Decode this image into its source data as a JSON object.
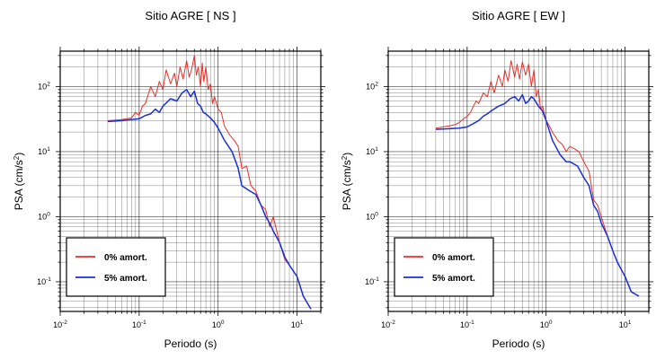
{
  "chart_data": [
    {
      "type": "line",
      "title": "Sitio AGRE [ NS ]",
      "xlabel": "Periodo (s)",
      "ylabel": "PSA (cm/s²)",
      "ylabel_parts": {
        "main": "PSA (cm/s",
        "sup": "2",
        "close": ")"
      },
      "xscale": "log",
      "yscale": "log",
      "xlim": [
        0.01,
        20
      ],
      "ylim": [
        0.035,
        350
      ],
      "xticks": [
        {
          "value": 0.01,
          "base": "10",
          "exp": "-2"
        },
        {
          "value": 0.1,
          "base": "10",
          "exp": "-1"
        },
        {
          "value": 1,
          "base": "10",
          "exp": "0"
        },
        {
          "value": 10,
          "base": "10",
          "exp": "1"
        }
      ],
      "yticks": [
        {
          "value": 0.1,
          "base": "10",
          "exp": "-1"
        },
        {
          "value": 1,
          "base": "10",
          "exp": "0"
        },
        {
          "value": 10,
          "base": "10",
          "exp": "1"
        },
        {
          "value": 100,
          "base": "10",
          "exp": "2"
        }
      ],
      "grid": true,
      "legend_position": "bottom-left",
      "series": [
        {
          "name": "0% amort.",
          "color": "#e8302a",
          "x": [
            0.04,
            0.06,
            0.08,
            0.09,
            0.1,
            0.11,
            0.12,
            0.13,
            0.14,
            0.16,
            0.18,
            0.2,
            0.22,
            0.25,
            0.28,
            0.3,
            0.33,
            0.36,
            0.4,
            0.43,
            0.46,
            0.5,
            0.53,
            0.56,
            0.6,
            0.63,
            0.66,
            0.7,
            0.75,
            0.8,
            0.85,
            0.9,
            1.0,
            1.1,
            1.2,
            1.4,
            1.6,
            1.8,
            2.0,
            2.3,
            2.6,
            3.0,
            3.5,
            4.0,
            4.5,
            5.0,
            6.0,
            7.0,
            8.0,
            10.0,
            12.0,
            15.0
          ],
          "y": [
            30,
            31,
            33,
            40,
            36,
            50,
            55,
            75,
            100,
            70,
            120,
            90,
            180,
            110,
            160,
            100,
            200,
            130,
            250,
            140,
            180,
            300,
            150,
            200,
            100,
            230,
            120,
            200,
            90,
            110,
            55,
            70,
            45,
            40,
            25,
            18,
            15,
            12,
            5.5,
            6,
            3,
            2.5,
            1.5,
            1.3,
            0.7,
            1.0,
            0.4,
            0.22,
            0.18,
            0.12,
            0.06,
            0.038
          ]
        },
        {
          "name": "5% amort.",
          "color": "#1a2fd6",
          "x": [
            0.04,
            0.06,
            0.08,
            0.1,
            0.12,
            0.14,
            0.16,
            0.18,
            0.2,
            0.25,
            0.3,
            0.35,
            0.4,
            0.45,
            0.5,
            0.55,
            0.6,
            0.65,
            0.7,
            0.8,
            0.9,
            1.0,
            1.2,
            1.5,
            1.8,
            2.0,
            2.5,
            3.0,
            3.5,
            4.0,
            4.5,
            5.0,
            6.0,
            7.0,
            8.0,
            10.0,
            12.0,
            15.0
          ],
          "y": [
            29,
            30,
            31,
            32,
            36,
            38,
            45,
            40,
            50,
            65,
            60,
            80,
            90,
            70,
            85,
            55,
            50,
            40,
            38,
            33,
            28,
            23,
            15,
            10,
            5.5,
            3,
            2.5,
            2.2,
            1.5,
            1.0,
            0.8,
            0.6,
            0.4,
            0.24,
            0.18,
            0.12,
            0.06,
            0.038
          ]
        }
      ]
    },
    {
      "type": "line",
      "title": "Sitio AGRE [ EW ]",
      "xlabel": "Periodo (s)",
      "ylabel": "PSA (cm/s²)",
      "ylabel_parts": {
        "main": "PSA (cm/s",
        "sup": "2",
        "close": ")"
      },
      "xscale": "log",
      "yscale": "log",
      "xlim": [
        0.01,
        20
      ],
      "ylim": [
        0.035,
        350
      ],
      "xticks": [
        {
          "value": 0.01,
          "base": "10",
          "exp": "-2"
        },
        {
          "value": 0.1,
          "base": "10",
          "exp": "-1"
        },
        {
          "value": 1,
          "base": "10",
          "exp": "0"
        },
        {
          "value": 10,
          "base": "10",
          "exp": "1"
        }
      ],
      "yticks": [
        {
          "value": 0.1,
          "base": "10",
          "exp": "-1"
        },
        {
          "value": 1,
          "base": "10",
          "exp": "0"
        },
        {
          "value": 10,
          "base": "10",
          "exp": "1"
        },
        {
          "value": 100,
          "base": "10",
          "exp": "2"
        }
      ],
      "grid": true,
      "legend_position": "bottom-left",
      "series": [
        {
          "name": "0% amort.",
          "color": "#e8302a",
          "x": [
            0.04,
            0.05,
            0.06,
            0.07,
            0.08,
            0.09,
            0.1,
            0.11,
            0.12,
            0.13,
            0.14,
            0.16,
            0.18,
            0.2,
            0.22,
            0.25,
            0.28,
            0.3,
            0.33,
            0.36,
            0.4,
            0.43,
            0.46,
            0.5,
            0.55,
            0.6,
            0.65,
            0.7,
            0.75,
            0.8,
            0.85,
            0.9,
            1.0,
            1.1,
            1.2,
            1.4,
            1.6,
            1.8,
            2.0,
            2.3,
            2.6,
            3.0,
            3.5,
            4.0,
            4.5,
            5.0,
            6.0,
            7.0,
            8.0,
            10.0,
            12.0,
            15.0
          ],
          "y": [
            23,
            24,
            25,
            26,
            28,
            32,
            35,
            40,
            50,
            60,
            55,
            80,
            70,
            120,
            80,
            150,
            100,
            180,
            120,
            250,
            140,
            220,
            130,
            240,
            150,
            220,
            100,
            180,
            70,
            90,
            45,
            50,
            30,
            25,
            20,
            15,
            13,
            10,
            12,
            11,
            10,
            7,
            5,
            1.8,
            1.5,
            1.0,
            0.5,
            0.3,
            0.2,
            0.12,
            0.07,
            0.06
          ]
        },
        {
          "name": "5% amort.",
          "color": "#1a2fd6",
          "x": [
            0.04,
            0.06,
            0.08,
            0.1,
            0.12,
            0.14,
            0.16,
            0.18,
            0.2,
            0.25,
            0.3,
            0.35,
            0.4,
            0.45,
            0.5,
            0.55,
            0.6,
            0.65,
            0.7,
            0.8,
            0.9,
            1.0,
            1.2,
            1.5,
            1.8,
            2.0,
            2.5,
            3.0,
            3.5,
            4.0,
            4.5,
            5.0,
            6.0,
            7.0,
            8.0,
            10.0,
            12.0,
            15.0
          ],
          "y": [
            22,
            22.5,
            23,
            24,
            27,
            30,
            35,
            38,
            42,
            50,
            55,
            65,
            70,
            60,
            75,
            55,
            60,
            70,
            65,
            50,
            42,
            30,
            15,
            9,
            7,
            7,
            6,
            4,
            3,
            1.5,
            1.2,
            0.8,
            0.5,
            0.3,
            0.2,
            0.12,
            0.07,
            0.06
          ]
        }
      ]
    }
  ]
}
